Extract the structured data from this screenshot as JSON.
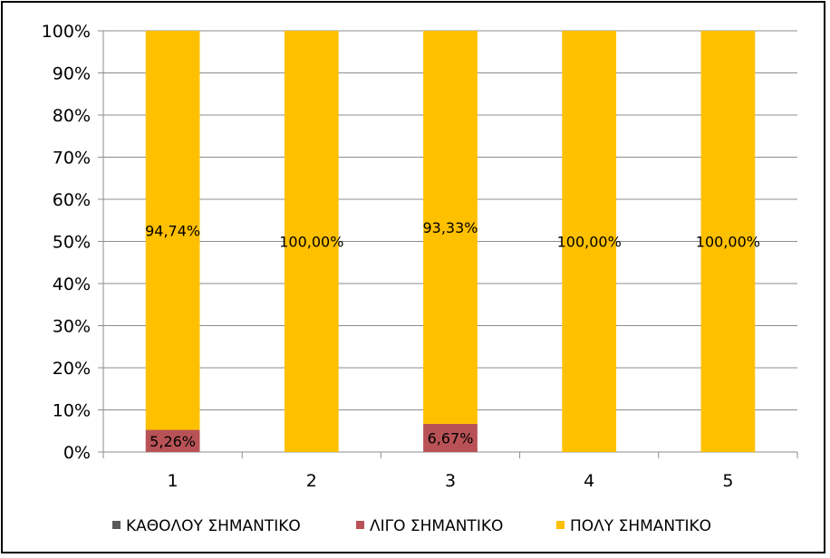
{
  "chart_data": {
    "type": "bar",
    "stacked": true,
    "percent": true,
    "categories": [
      "1",
      "2",
      "3",
      "4",
      "5"
    ],
    "series": [
      {
        "name": "ΚΑΘΟΛΟΥ ΣΗΜΑΝΤΙΚΟ",
        "color": "#595959",
        "values": [
          0,
          0,
          0,
          0,
          0
        ],
        "labels": [
          "",
          "",
          "",
          "",
          ""
        ]
      },
      {
        "name": "ΛΙΓΟ ΣΗΜΑΝΤΙΚΟ",
        "color": "#b85256",
        "values": [
          5.26,
          0,
          6.67,
          0,
          0
        ],
        "labels": [
          "5,26%",
          "",
          "6,67%",
          "",
          ""
        ]
      },
      {
        "name": "ΠΟΛΥ ΣΗΜΑΝΤΙΚΟ",
        "color": "#ffc000",
        "values": [
          94.74,
          100,
          93.33,
          100,
          100
        ],
        "labels": [
          "94,74%",
          "100,00%",
          "93,33%",
          "100,00%",
          "100,00%"
        ]
      }
    ],
    "yticks": [
      "0%",
      "10%",
      "20%",
      "30%",
      "40%",
      "50%",
      "60%",
      "70%",
      "80%",
      "90%",
      "100%"
    ],
    "ylim": [
      0,
      100
    ],
    "grid": true,
    "legend": "bottom"
  }
}
